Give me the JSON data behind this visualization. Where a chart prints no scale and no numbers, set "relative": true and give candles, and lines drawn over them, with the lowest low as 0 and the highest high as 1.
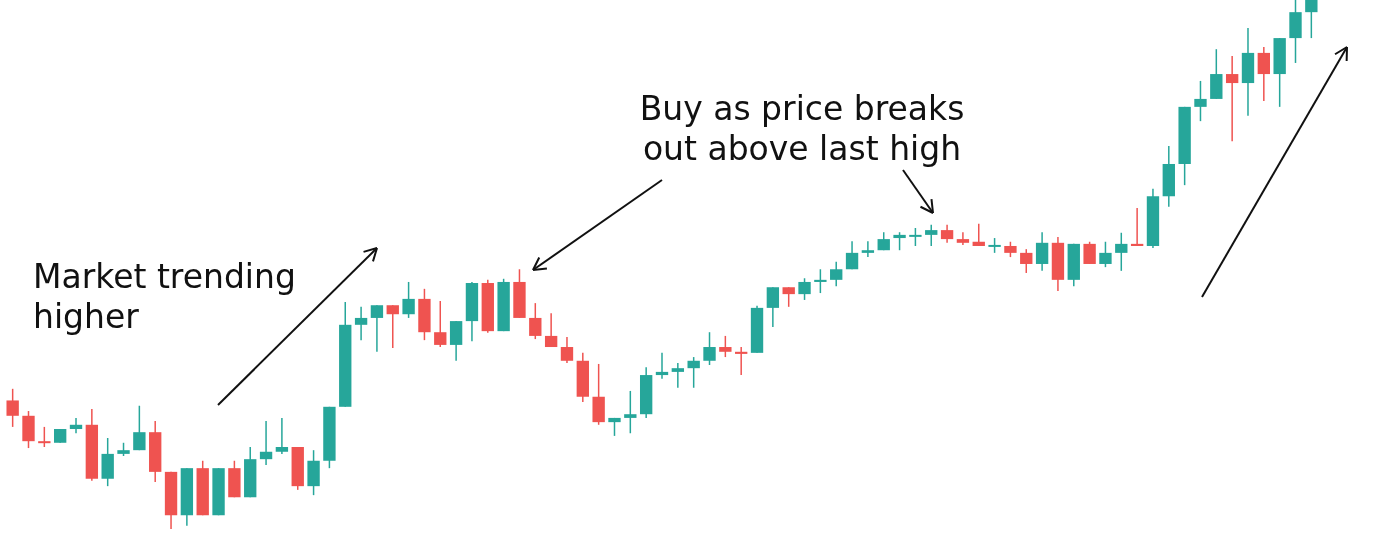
{
  "chart_data": {
    "type": "candlestick",
    "relative": true,
    "categories": [
      null,
      null,
      null,
      null,
      null,
      null,
      null,
      null,
      null,
      null,
      null,
      null,
      null,
      null,
      null,
      null,
      null,
      null,
      null,
      null,
      null,
      null,
      null,
      null,
      null,
      null,
      null,
      null,
      null,
      null,
      null,
      null,
      null,
      null,
      null,
      null,
      null,
      null,
      null,
      null,
      null,
      null,
      null,
      null,
      null,
      null,
      null,
      null,
      null,
      null,
      null,
      null,
      null,
      null,
      null,
      null,
      null,
      null,
      null,
      null,
      null,
      null,
      null,
      null,
      null,
      null,
      null,
      null,
      null,
      null,
      null,
      null,
      null,
      null,
      null,
      null,
      null,
      null,
      null,
      null,
      null,
      null,
      null
    ],
    "ohlc": [
      [
        0.243,
        0.265,
        0.193,
        0.214
      ],
      [
        0.214,
        0.223,
        0.153,
        0.166
      ],
      [
        0.166,
        0.193,
        0.155,
        0.163
      ],
      [
        0.163,
        0.189,
        0.163,
        0.189
      ],
      [
        0.189,
        0.21,
        0.181,
        0.197
      ],
      [
        0.197,
        0.227,
        0.091,
        0.095
      ],
      [
        0.095,
        0.172,
        0.081,
        0.142
      ],
      [
        0.142,
        0.163,
        0.138,
        0.149
      ],
      [
        0.149,
        0.233,
        0.149,
        0.183
      ],
      [
        0.183,
        0.204,
        0.089,
        0.108
      ],
      [
        0.108,
        0.108,
        0,
        0.026
      ],
      [
        0.026,
        0.115,
        0.006,
        0.115
      ],
      [
        0.115,
        0.129,
        0.026,
        0.026
      ],
      [
        0.026,
        0.115,
        0.026,
        0.115
      ],
      [
        0.115,
        0.129,
        0.06,
        0.06
      ],
      [
        0.06,
        0.155,
        0.06,
        0.132
      ],
      [
        0.132,
        0.204,
        0.121,
        0.146
      ],
      [
        0.146,
        0.21,
        0.142,
        0.155
      ],
      [
        0.155,
        0.155,
        0.074,
        0.081
      ],
      [
        0.081,
        0.149,
        0.064,
        0.129
      ],
      [
        0.129,
        0.231,
        0.115,
        0.231
      ],
      [
        0.231,
        0.429,
        0.231,
        0.386
      ],
      [
        0.386,
        0.42,
        0.357,
        0.399
      ],
      [
        0.399,
        0.423,
        0.335,
        0.423
      ],
      [
        0.423,
        0.423,
        0.342,
        0.406
      ],
      [
        0.406,
        0.467,
        0.399,
        0.435
      ],
      [
        0.435,
        0.454,
        0.357,
        0.372
      ],
      [
        0.372,
        0.431,
        0.344,
        0.348
      ],
      [
        0.348,
        0.393,
        0.318,
        0.393
      ],
      [
        0.393,
        0.467,
        0.355,
        0.465
      ],
      [
        0.465,
        0.471,
        0.371,
        0.374
      ],
      [
        0.374,
        0.473,
        0.374,
        0.467
      ],
      [
        0.467,
        0.491,
        0.399,
        0.399
      ],
      [
        0.399,
        0.427,
        0.359,
        0.365
      ],
      [
        0.365,
        0.408,
        0.344,
        0.344
      ],
      [
        0.344,
        0.363,
        0.314,
        0.318
      ],
      [
        0.318,
        0.333,
        0.24,
        0.25
      ],
      [
        0.25,
        0.312,
        0.197,
        0.202
      ],
      [
        0.202,
        0.21,
        0.176,
        0.21
      ],
      [
        0.21,
        0.261,
        0.181,
        0.217
      ],
      [
        0.217,
        0.306,
        0.21,
        0.291
      ],
      [
        0.291,
        0.333,
        0.284,
        0.297
      ],
      [
        0.297,
        0.314,
        0.267,
        0.304
      ],
      [
        0.304,
        0.325,
        0.267,
        0.318
      ],
      [
        0.318,
        0.372,
        0.31,
        0.344
      ],
      [
        0.344,
        0.365,
        0.325,
        0.335
      ],
      [
        0.335,
        0.344,
        0.291,
        0.331
      ],
      [
        0.333,
        0.422,
        0.333,
        0.418
      ],
      [
        0.418,
        0.457,
        0.382,
        0.457
      ],
      [
        0.457,
        0.457,
        0.42,
        0.444
      ],
      [
        0.444,
        0.474,
        0.433,
        0.467
      ],
      [
        0.467,
        0.491,
        0.446,
        0.471
      ],
      [
        0.471,
        0.505,
        0.459,
        0.491
      ],
      [
        0.491,
        0.544,
        0.491,
        0.522
      ],
      [
        0.522,
        0.544,
        0.514,
        0.527
      ],
      [
        0.527,
        0.561,
        0.527,
        0.548
      ],
      [
        0.55,
        0.561,
        0.527,
        0.556
      ],
      [
        0.554,
        0.569,
        0.535,
        0.556
      ],
      [
        0.556,
        0.575,
        0.535,
        0.565
      ],
      [
        0.565,
        0.575,
        0.541,
        0.548
      ],
      [
        0.548,
        0.561,
        0.537,
        0.541
      ],
      [
        0.543,
        0.577,
        0.535,
        0.535
      ],
      [
        0.535,
        0.55,
        0.522,
        0.537
      ],
      [
        0.535,
        0.543,
        0.514,
        0.522
      ],
      [
        0.522,
        0.529,
        0.484,
        0.501
      ],
      [
        0.501,
        0.561,
        0.488,
        0.541
      ],
      [
        0.541,
        0.552,
        0.45,
        0.471
      ],
      [
        0.471,
        0.539,
        0.459,
        0.539
      ],
      [
        0.539,
        0.543,
        0.501,
        0.501
      ],
      [
        0.501,
        0.543,
        0.495,
        0.522
      ],
      [
        0.522,
        0.56,
        0.488,
        0.539
      ],
      [
        0.539,
        0.607,
        0.535,
        0.535
      ],
      [
        0.535,
        0.643,
        0.531,
        0.629
      ],
      [
        0.629,
        0.724,
        0.609,
        0.69
      ],
      [
        0.69,
        0.798,
        0.65,
        0.798
      ],
      [
        0.798,
        0.847,
        0.771,
        0.813
      ],
      [
        0.813,
        0.907,
        0.813,
        0.86
      ],
      [
        0.86,
        0.894,
        0.733,
        0.843
      ],
      [
        0.843,
        0.947,
        0.781,
        0.9
      ],
      [
        0.9,
        0.911,
        0.809,
        0.86
      ],
      [
        0.86,
        0.928,
        0.798,
        0.928
      ],
      [
        0.928,
        1,
        0.881,
        0.977
      ],
      [
        0.977,
        1,
        0.928,
        1
      ]
    ],
    "colors": [
      "#ef5350",
      "#ef5350",
      "#ef5350",
      "#26a69a",
      "#26a69a",
      "#ef5350",
      "#26a69a",
      "#26a69a",
      "#26a69a",
      "#ef5350",
      "#ef5350",
      "#26a69a",
      "#ef5350",
      "#26a69a",
      "#ef5350",
      "#26a69a",
      "#26a69a",
      "#26a69a",
      "#ef5350",
      "#26a69a",
      "#26a69a",
      "#26a69a",
      "#26a69a",
      "#26a69a",
      "#ef5350",
      "#26a69a",
      "#ef5350",
      "#ef5350",
      "#26a69a",
      "#26a69a",
      "#ef5350",
      "#26a69a",
      "#ef5350",
      "#ef5350",
      "#ef5350",
      "#ef5350",
      "#ef5350",
      "#ef5350",
      "#26a69a",
      "#26a69a",
      "#26a69a",
      "#26a69a",
      "#26a69a",
      "#26a69a",
      "#26a69a",
      "#ef5350",
      "#ef5350",
      "#26a69a",
      "#26a69a",
      "#ef5350",
      "#26a69a",
      "#26a69a",
      "#26a69a",
      "#26a69a",
      "#26a69a",
      "#26a69a",
      "#26a69a",
      "#26a69a",
      "#26a69a",
      "#ef5350",
      "#ef5350",
      "#ef5350",
      "#26a69a",
      "#ef5350",
      "#ef5350",
      "#26a69a",
      "#ef5350",
      "#26a69a",
      "#ef5350",
      "#26a69a",
      "#26a69a",
      "#ef5350",
      "#26a69a",
      "#26a69a",
      "#26a69a",
      "#26a69a",
      "#26a69a",
      "#ef5350",
      "#26a69a",
      "#ef5350",
      "#26a69a",
      "#26a69a",
      "#26a69a"
    ],
    "annotations": [
      "Market trending\nhigher",
      "Buy as price breaks\nout above last high"
    ]
  }
}
